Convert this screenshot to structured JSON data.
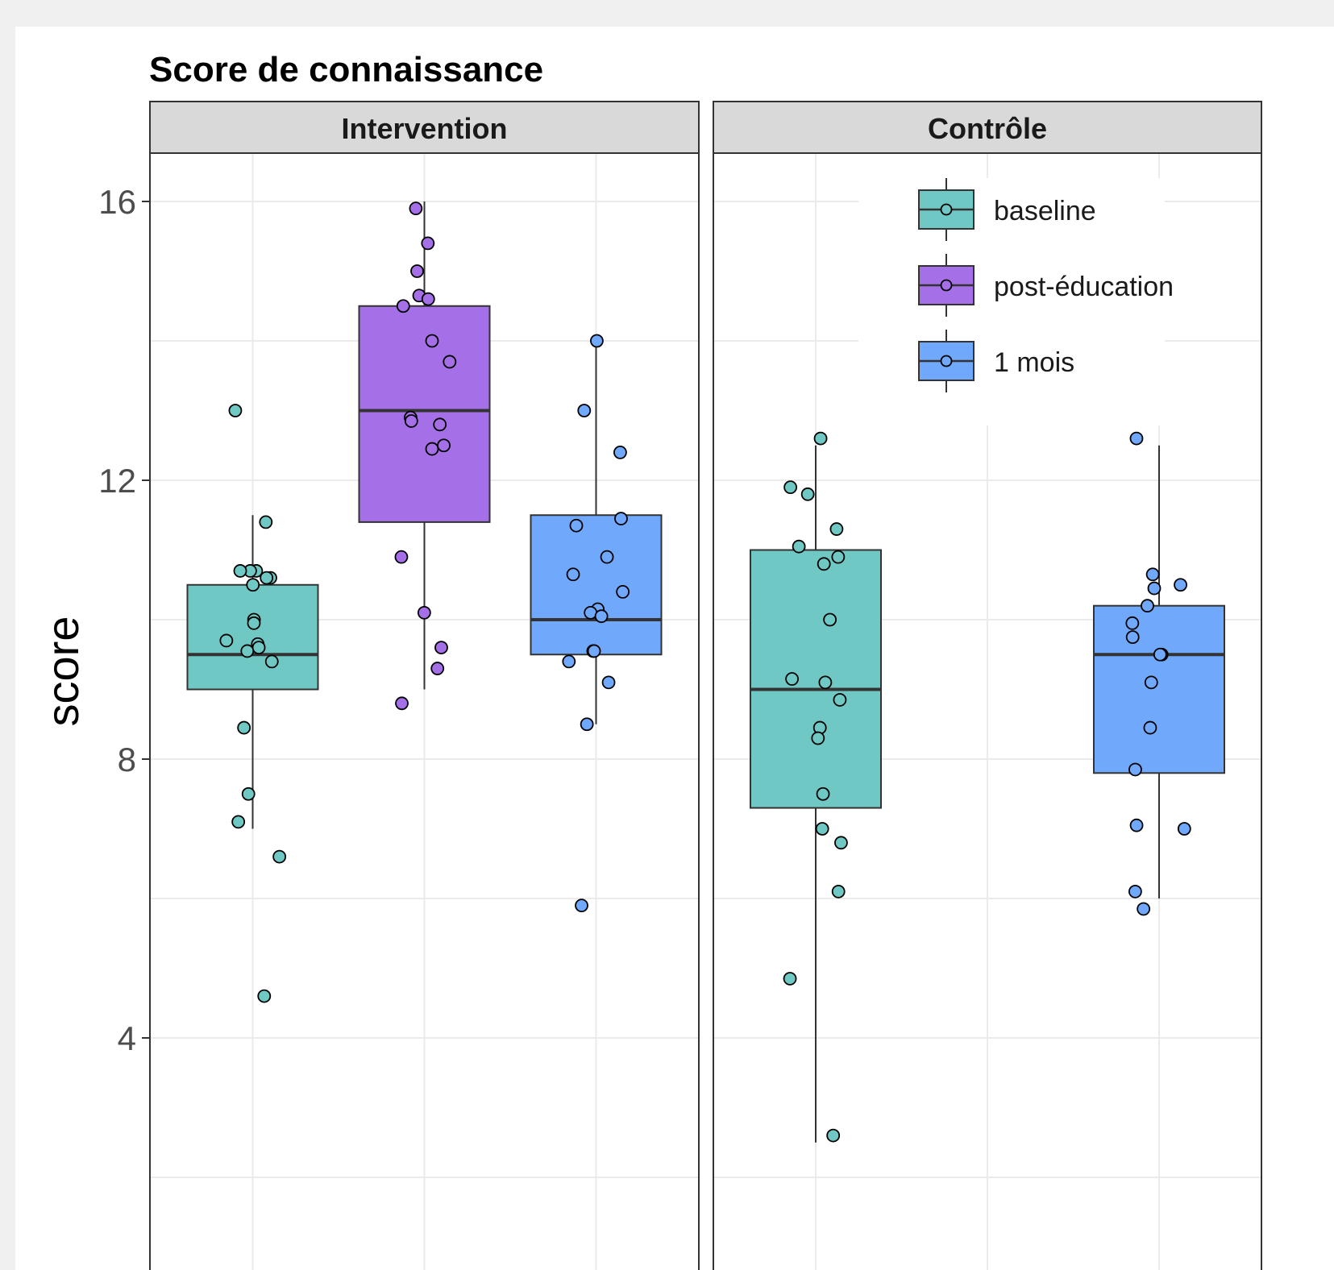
{
  "chart_data": {
    "type": "box",
    "title": "Score de connaissance",
    "ylabel": "score",
    "xlabel": "",
    "ylim": [
      2.0,
      17.0
    ],
    "y_ticks": [
      4,
      8,
      12,
      16
    ],
    "grid": true,
    "legend_position": "top-right",
    "series": [
      {
        "name": "baseline",
        "color": "#70c8c4"
      },
      {
        "name": "post-éducation",
        "color": "#a56fe8"
      },
      {
        "name": "1 mois",
        "color": "#70a8fc"
      }
    ],
    "facets": [
      {
        "label": "Intervention",
        "groups": [
          {
            "series": "baseline",
            "q1": 9.0,
            "median": 9.5,
            "q3": 10.5,
            "whisker_low": 7.0,
            "whisker_high": 11.5,
            "points": [
              13.0,
              11.4,
              10.7,
              10.7,
              10.7,
              10.6,
              10.6,
              10.5,
              10.0,
              9.95,
              9.7,
              9.65,
              9.6,
              9.55,
              9.4,
              8.45,
              7.5,
              7.1,
              6.6,
              4.6
            ]
          },
          {
            "series": "post-éducation",
            "q1": 11.4,
            "median": 13.0,
            "q3": 14.5,
            "whisker_low": 9.0,
            "whisker_high": 16.0,
            "points": [
              15.9,
              15.4,
              15.0,
              14.65,
              14.6,
              14.5,
              14.0,
              13.7,
              12.9,
              12.85,
              12.8,
              12.5,
              12.45,
              10.9,
              10.1,
              9.6,
              9.3,
              8.8
            ]
          },
          {
            "series": "1 mois",
            "q1": 9.5,
            "median": 10.0,
            "q3": 11.5,
            "whisker_low": 8.5,
            "whisker_high": 14.0,
            "points": [
              14.0,
              13.0,
              12.4,
              11.45,
              11.35,
              10.9,
              10.65,
              10.4,
              10.15,
              10.1,
              10.05,
              9.55,
              9.55,
              9.4,
              9.1,
              8.5,
              5.9
            ]
          }
        ]
      },
      {
        "label": "Contrôle",
        "groups": [
          {
            "series": "baseline",
            "q1": 7.3,
            "median": 9.0,
            "q3": 11.0,
            "whisker_low": 2.5,
            "whisker_high": 12.5,
            "points": [
              12.6,
              11.9,
              11.8,
              11.3,
              11.05,
              10.9,
              10.8,
              10.0,
              9.15,
              9.1,
              8.85,
              8.45,
              8.3,
              7.5,
              7.0,
              6.8,
              6.1,
              4.85,
              2.6
            ]
          },
          {
            "series": "1 mois",
            "q1": 7.8,
            "median": 9.5,
            "q3": 10.2,
            "whisker_low": 6.0,
            "whisker_high": 12.5,
            "points": [
              12.6,
              10.65,
              10.5,
              10.45,
              10.2,
              9.95,
              9.75,
              9.5,
              9.5,
              9.1,
              8.45,
              7.85,
              7.05,
              7.0,
              6.1,
              5.85
            ]
          }
        ]
      }
    ]
  }
}
